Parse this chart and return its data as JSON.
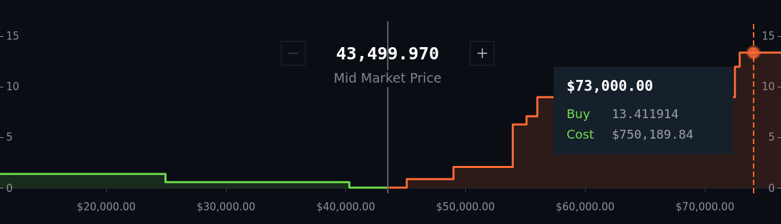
{
  "chart_data": {
    "type": "step",
    "xlim": [
      11130,
      76350
    ],
    "xticks": [
      {
        "value": 20000,
        "label": "$20,000.00"
      },
      {
        "value": 30000,
        "label": "$30,000.00"
      },
      {
        "value": 40000,
        "label": "$40,000.00"
      },
      {
        "value": 50000,
        "label": "$50,000.00"
      },
      {
        "value": 60000,
        "label": "$60,000.00"
      },
      {
        "value": 70000,
        "label": "$70,000.00"
      }
    ],
    "ylim": [
      -0.5,
      16.5
    ],
    "yticks": [
      0,
      5,
      10,
      15
    ],
    "y2lim": [
      -0.5,
      16.5
    ],
    "y2ticks": [
      0,
      5,
      10,
      15
    ],
    "grid": false,
    "series": [
      {
        "color": "#6fdc4c",
        "x": [
          11130,
          24950,
          40300,
          43499.97
        ],
        "values": [
          1.4,
          0.6,
          0.05,
          0.05
        ]
      },
      {
        "color": "#ff6a33",
        "x": [
          43499.97,
          45100,
          49000,
          53950,
          55100,
          56000,
          72500,
          72900,
          76350
        ],
        "values": [
          0.05,
          0.9,
          2.1,
          6.3,
          7.1,
          9.0,
          12.0,
          13.4,
          13.4
        ]
      },
      {
        "type": "scatter",
        "marker": "circle",
        "color": "#ff6a33",
        "x": [
          74050
        ],
        "values": [
          13.4
        ]
      }
    ],
    "ref_lines": [
      {
        "axis": "x",
        "value": 43499.97,
        "color": "#60656c",
        "line_style": "solid"
      },
      {
        "axis": "x",
        "value": 74050,
        "color": "#ff6a33",
        "line_style": "dashed"
      }
    ],
    "annotations": [
      {
        "text": "43,499.970",
        "x": 43499.97,
        "y": 13.3
      },
      {
        "text": "Mid Market Price",
        "x": 43499.97,
        "y": 10.8
      },
      "$73,000.00",
      "Buy",
      "13.411914",
      "Cost",
      "$750,189.84"
    ]
  }
}
